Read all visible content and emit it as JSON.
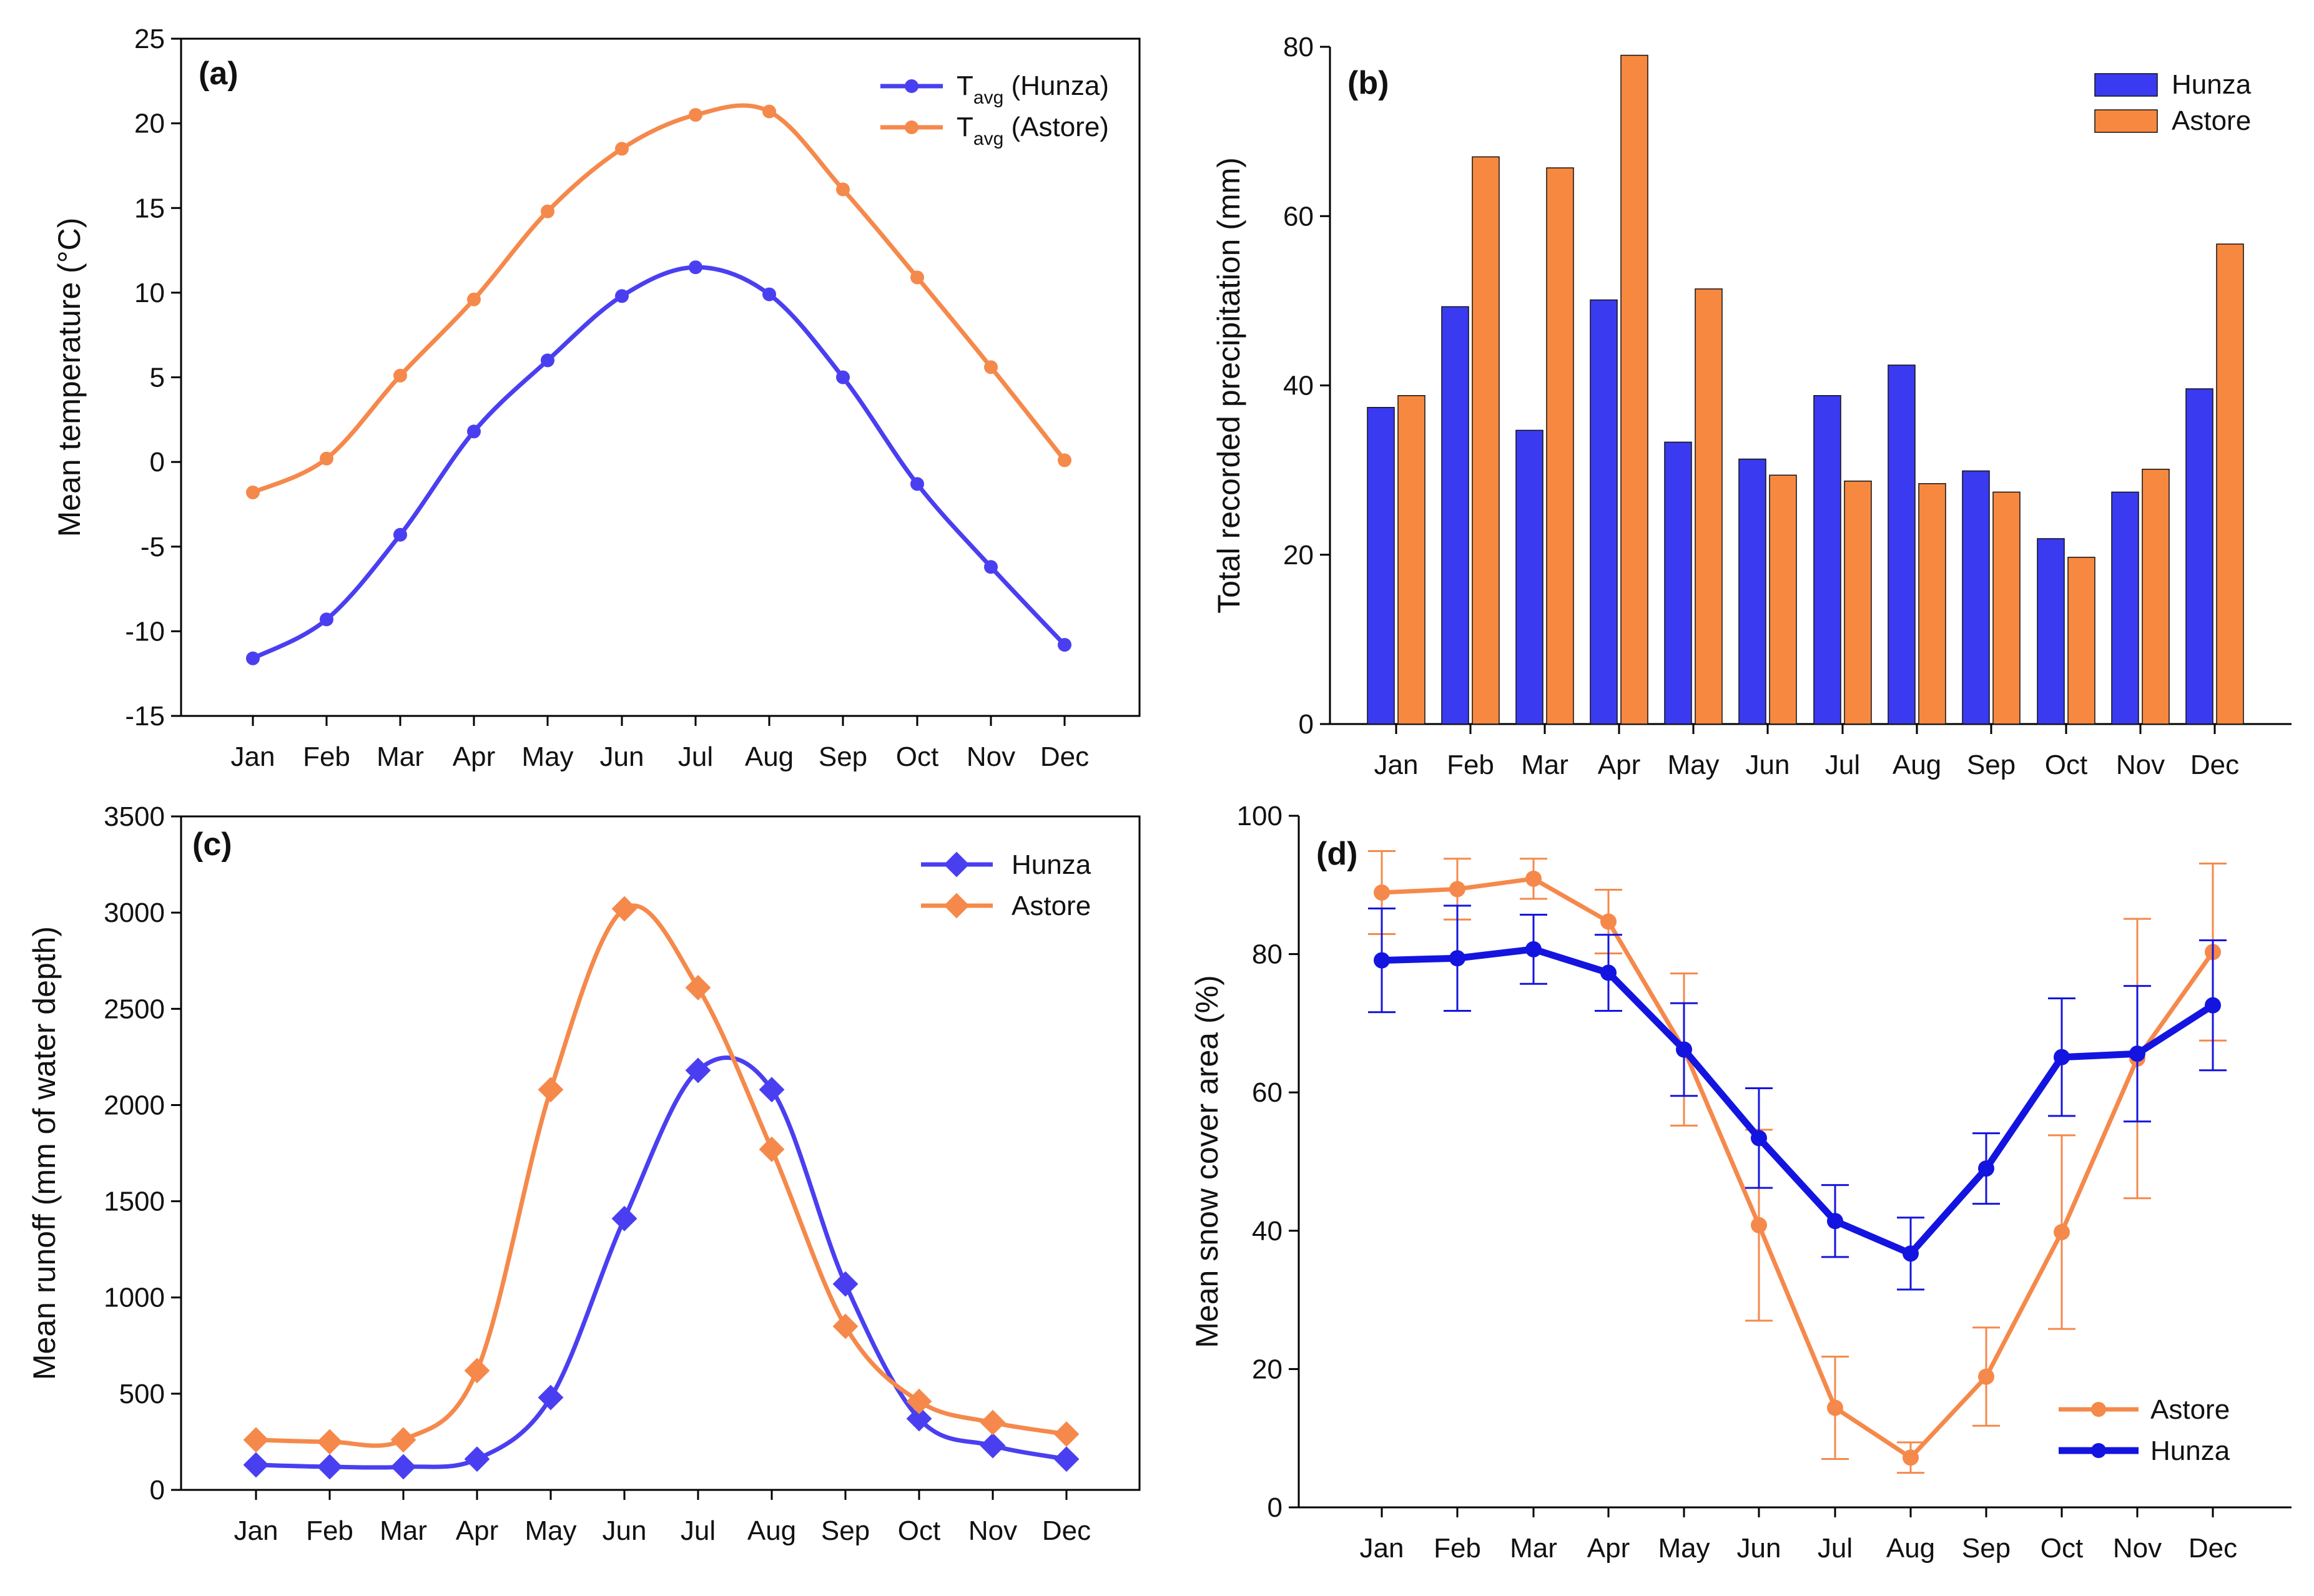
{
  "figure": {
    "colors": {
      "hunza": "#4a3ff0",
      "hunza_snow": "#1414e0",
      "astore": "#f5894b",
      "bar_hunza": "#3a3af0",
      "bar_astore": "#f7883f"
    },
    "months": [
      "Jan",
      "Feb",
      "Mar",
      "Apr",
      "May",
      "Jun",
      "Jul",
      "Aug",
      "Sep",
      "Oct",
      "Nov",
      "Dec"
    ]
  },
  "chart_data": [
    {
      "id": "a",
      "type": "line",
      "panel_label": "(a)",
      "title": "",
      "xlabel": "",
      "ylabel": "Mean temperature (°C)",
      "ylim": [
        -15,
        25
      ],
      "yticks": [
        -15,
        -10,
        -5,
        0,
        5,
        10,
        15,
        20,
        25
      ],
      "categories": [
        "Jan",
        "Feb",
        "Mar",
        "Apr",
        "May",
        "Jun",
        "Jul",
        "Aug",
        "Sep",
        "Oct",
        "Nov",
        "Dec"
      ],
      "legend_position": "top-right",
      "series": [
        {
          "name": "Tavg (Hunza)",
          "legend_main": "T",
          "legend_sub": "avg",
          "legend_rest": " (Hunza)",
          "color": "#4a3ff0",
          "marker": "circle",
          "values": [
            -11.6,
            -9.3,
            -4.3,
            1.8,
            6.0,
            9.8,
            11.5,
            9.9,
            5.0,
            -1.3,
            -6.2,
            -10.8
          ]
        },
        {
          "name": "Tavg (Astore)",
          "legend_main": "T",
          "legend_sub": "avg",
          "legend_rest": " (Astore)",
          "color": "#f5894b",
          "marker": "circle",
          "values": [
            -1.8,
            0.2,
            5.1,
            9.6,
            14.8,
            18.5,
            20.5,
            20.7,
            16.1,
            10.9,
            5.6,
            0.1
          ]
        }
      ]
    },
    {
      "id": "b",
      "type": "bar",
      "panel_label": "(b)",
      "title": "",
      "xlabel": "",
      "ylabel": "Total recorded precipitation (mm)",
      "ylim": [
        0,
        80
      ],
      "yticks": [
        0,
        20,
        40,
        60,
        80
      ],
      "categories": [
        "Jan",
        "Feb",
        "Mar",
        "Apr",
        "May",
        "Jun",
        "Jul",
        "Aug",
        "Sep",
        "Oct",
        "Nov",
        "Dec"
      ],
      "legend_position": "top-right",
      "series": [
        {
          "name": "Hunza",
          "color": "#3a3af0",
          "values": [
            37.4,
            49.3,
            34.7,
            50.1,
            33.3,
            31.3,
            38.8,
            42.4,
            29.9,
            21.9,
            27.4,
            39.6
          ]
        },
        {
          "name": "Astore",
          "color": "#f7883f",
          "values": [
            38.8,
            67.0,
            65.7,
            79.0,
            51.4,
            29.4,
            28.7,
            28.4,
            27.4,
            19.7,
            30.1,
            56.7
          ]
        }
      ]
    },
    {
      "id": "c",
      "type": "line",
      "panel_label": "(c)",
      "title": "",
      "xlabel": "",
      "ylabel": "Mean runoff (mm of water depth)",
      "ylim": [
        0,
        3500
      ],
      "yticks": [
        0,
        500,
        1000,
        1500,
        2000,
        2500,
        3000,
        3500
      ],
      "categories": [
        "Jan",
        "Feb",
        "Mar",
        "Apr",
        "May",
        "Jun",
        "Jul",
        "Aug",
        "Sep",
        "Oct",
        "Nov",
        "Dec"
      ],
      "legend_position": "top-right",
      "series": [
        {
          "name": "Hunza",
          "color": "#4a3ff0",
          "marker": "diamond",
          "values": [
            130,
            120,
            120,
            160,
            480,
            1410,
            2180,
            2080,
            1070,
            370,
            230,
            160
          ]
        },
        {
          "name": "Astore",
          "color": "#f5894b",
          "marker": "diamond",
          "values": [
            260,
            250,
            260,
            620,
            2080,
            3020,
            2610,
            1770,
            850,
            460,
            350,
            290
          ]
        }
      ]
    },
    {
      "id": "d",
      "type": "line",
      "panel_label": "(d)",
      "title": "",
      "xlabel": "",
      "ylabel": "Mean snow cover area (%)",
      "ylim": [
        0,
        100
      ],
      "yticks": [
        0,
        20,
        40,
        60,
        80,
        100
      ],
      "categories": [
        "Jan",
        "Feb",
        "Mar",
        "Apr",
        "May",
        "Jun",
        "Jul",
        "Aug",
        "Sep",
        "Oct",
        "Nov",
        "Dec"
      ],
      "legend_position": "bottom-right",
      "series": [
        {
          "name": "Astore",
          "color": "#f5894b",
          "marker": "circle",
          "values": [
            88.9,
            89.4,
            90.9,
            84.7,
            66.2,
            40.8,
            14.4,
            7.2,
            18.9,
            39.8,
            64.9,
            80.3
          ],
          "error": [
            6.0,
            4.4,
            2.9,
            4.6,
            11.0,
            13.8,
            7.4,
            2.2,
            7.1,
            14.0,
            20.2,
            12.8
          ]
        },
        {
          "name": "Hunza",
          "color": "#1414e0",
          "marker": "circle",
          "values": [
            79.1,
            79.4,
            80.7,
            77.3,
            66.2,
            53.4,
            41.4,
            36.7,
            49.0,
            65.1,
            65.6,
            72.6
          ],
          "error": [
            7.5,
            7.6,
            5.0,
            5.5,
            6.7,
            7.2,
            5.2,
            5.2,
            5.1,
            8.5,
            9.8,
            9.4
          ]
        }
      ]
    }
  ]
}
